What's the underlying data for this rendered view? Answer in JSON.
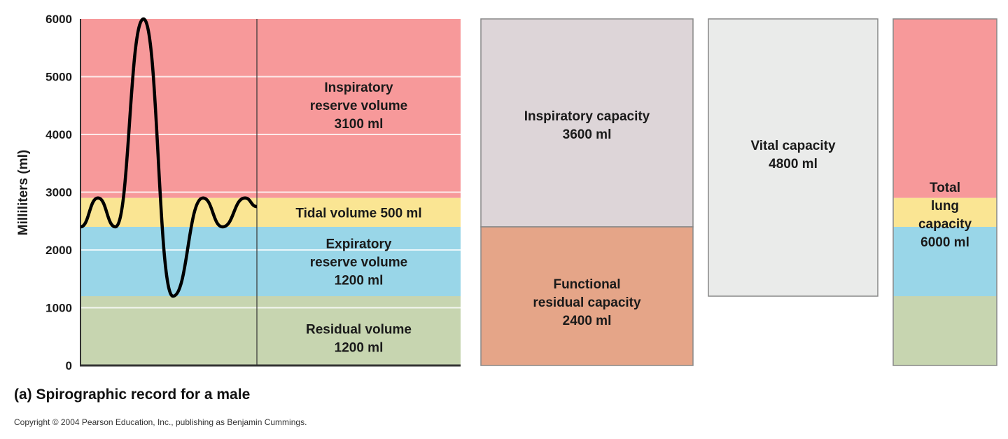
{
  "chart_data": {
    "type": "stacked-bar-diagram",
    "ylabel": "Milliliters (ml)",
    "ylim": [
      0,
      6000
    ],
    "yticks": [
      "0",
      "1000",
      "2000",
      "3000",
      "4000",
      "5000",
      "6000"
    ],
    "grid": true,
    "volumes": [
      {
        "key": "irv",
        "lines": [
          "Inspiratory",
          "reserve volume",
          "3100 ml"
        ],
        "from": 2900,
        "to": 6000,
        "color": "#f7999a"
      },
      {
        "key": "tv",
        "lines": [
          "Tidal volume 500 ml"
        ],
        "from": 2400,
        "to": 2900,
        "color": "#fae593"
      },
      {
        "key": "erv",
        "lines": [
          "Expiratory",
          "reserve volume",
          "1200 ml"
        ],
        "from": 1200,
        "to": 2400,
        "color": "#99d6e8"
      },
      {
        "key": "rv",
        "lines": [
          "Residual volume",
          "1200 ml"
        ],
        "from": 0,
        "to": 1200,
        "color": "#c7d5b0"
      }
    ],
    "capacities": [
      {
        "key": "ic",
        "lines": [
          "Inspiratory capacity",
          "3600 ml"
        ],
        "from": 2400,
        "to": 6000,
        "color": "#ddd5d8"
      },
      {
        "key": "frc",
        "lines": [
          "Functional",
          "residual capacity",
          "2400 ml"
        ],
        "from": 0,
        "to": 2400,
        "color": "#e5a588"
      },
      {
        "key": "vc",
        "lines": [
          "Vital capacity",
          "4800 ml"
        ],
        "from": 1200,
        "to": 6000,
        "color": "#eaebea"
      },
      {
        "key": "tlc",
        "lines": [
          "Total",
          "lung",
          "capacity",
          "6000 ml"
        ],
        "from": 0,
        "to": 6000
      }
    ],
    "trace_ml": [
      2400,
      2900,
      2400,
      6000,
      1200,
      2900,
      2400,
      2900,
      2750
    ],
    "trace_color": "#000000"
  },
  "caption": "(a)  Spirographic record for a male",
  "copyright": "Copyright © 2004 Pearson Education, Inc., publishing as Benjamin Cummings."
}
